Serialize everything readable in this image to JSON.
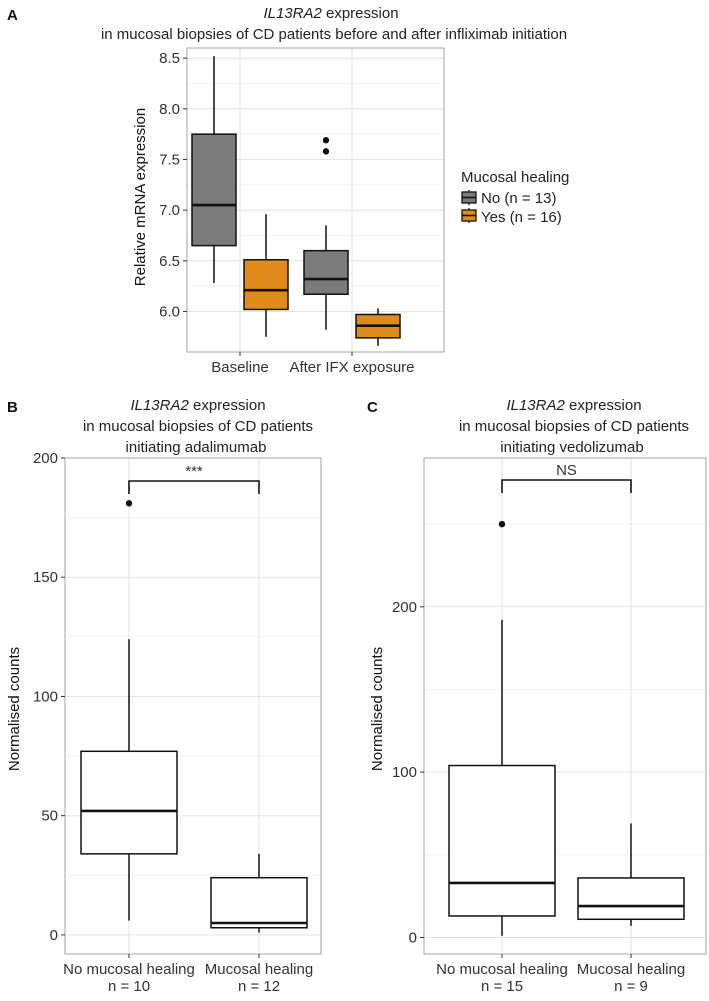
{
  "chart_data": [
    {
      "panel": "A",
      "type": "boxplot",
      "title_gene": "IL13RA2",
      "title_rest": " expression",
      "subtitle": "in mucosal biopsies of CD patients before and after infliximab initiation",
      "xlabel": "",
      "ylabel": "Relative mRNA expression",
      "ylim": [
        5.6,
        8.6
      ],
      "yticks": [
        6.0,
        6.5,
        7.0,
        7.5,
        8.0,
        8.5
      ],
      "ytick_labels": [
        "6.0",
        "6.5",
        "7.0",
        "7.5",
        "8.0",
        "8.5"
      ],
      "categories": [
        "Baseline",
        "After IFX exposure"
      ],
      "legend": {
        "title": "Mucosal healing",
        "entries": [
          {
            "label": "No (n = 13)",
            "color": "#7b7b7b"
          },
          {
            "label": "Yes (n = 16)",
            "color": "#e08c1c"
          }
        ]
      },
      "boxes": [
        {
          "category": 0,
          "group": 0,
          "min": 6.28,
          "q1": 6.65,
          "median": 7.05,
          "q3": 7.75,
          "max": 8.52,
          "outliers": []
        },
        {
          "category": 0,
          "group": 1,
          "min": 5.75,
          "q1": 6.02,
          "median": 6.21,
          "q3": 6.51,
          "max": 6.96,
          "outliers": []
        },
        {
          "category": 1,
          "group": 0,
          "min": 5.82,
          "q1": 6.17,
          "median": 6.32,
          "q3": 6.6,
          "max": 6.85,
          "outliers": [
            7.58,
            7.69
          ]
        },
        {
          "category": 1,
          "group": 1,
          "min": 5.66,
          "q1": 5.74,
          "median": 5.86,
          "q3": 5.97,
          "max": 6.03,
          "outliers": []
        }
      ]
    },
    {
      "panel": "B",
      "type": "boxplot",
      "title_gene": "IL13RA2",
      "title_rest": " expression",
      "subtitle": "in mucosal biopsies of CD patients",
      "subtitle2": "initiating adalimumab",
      "ylabel": "Normalised counts",
      "ylim": [
        -8,
        200
      ],
      "yticks": [
        0,
        50,
        100,
        150,
        200
      ],
      "ytick_labels": [
        "0",
        "50",
        "100",
        "150",
        "200"
      ],
      "categories": [
        "No mucosal healing",
        "Mucosal healing"
      ],
      "n_labels": [
        "n = 10",
        "n = 12"
      ],
      "significance": "***",
      "boxes": [
        {
          "category": 0,
          "min": 6,
          "q1": 34,
          "median": 52,
          "q3": 77,
          "max": 124,
          "outliers": [
            181
          ]
        },
        {
          "category": 1,
          "min": 1,
          "q1": 3,
          "median": 5,
          "q3": 24,
          "max": 34,
          "outliers": []
        }
      ]
    },
    {
      "panel": "C",
      "type": "boxplot",
      "title_gene": "IL13RA2",
      "title_rest": " expression",
      "subtitle": "in mucosal biopsies of CD patients",
      "subtitle2": "initiating vedolizumab",
      "ylabel": "Normalised counts",
      "ylim": [
        -10,
        290
      ],
      "yticks": [
        0,
        100,
        200
      ],
      "ytick_labels": [
        "0",
        "100",
        "200"
      ],
      "categories": [
        "No mucosal healing",
        "Mucosal healing"
      ],
      "n_labels": [
        "n = 15",
        "n = 9"
      ],
      "significance": "NS",
      "boxes": [
        {
          "category": 0,
          "min": 1,
          "q1": 13,
          "median": 33,
          "q3": 104,
          "max": 192,
          "outliers": [
            250
          ]
        },
        {
          "category": 1,
          "min": 7,
          "q1": 11,
          "median": 19,
          "q3": 36,
          "max": 69,
          "outliers": []
        }
      ]
    }
  ]
}
